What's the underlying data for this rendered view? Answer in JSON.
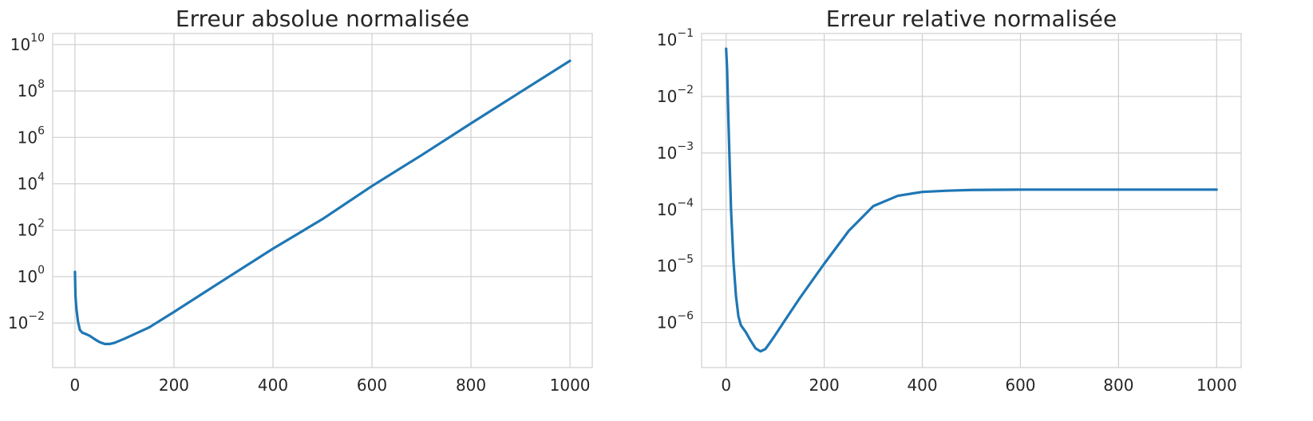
{
  "chart_data": [
    {
      "type": "line",
      "title": "Erreur absolue normalisée",
      "xlabel": "",
      "ylabel": "",
      "yscale": "log",
      "grid": true,
      "xlim": [
        -45,
        1045
      ],
      "ylim": [
        0.00012,
        30000000000
      ],
      "xticks": [
        0,
        200,
        400,
        600,
        800,
        1000
      ],
      "xtick_labels": [
        "0",
        "200",
        "400",
        "600",
        "800",
        "1000"
      ],
      "yticks": [
        0.01,
        1,
        100,
        10000,
        1000000,
        100000000,
        10000000000
      ],
      "ytick_labels": [
        {
          "base": "10",
          "exp": "−2"
        },
        {
          "base": "10",
          "exp": "0"
        },
        {
          "base": "10",
          "exp": "2"
        },
        {
          "base": "10",
          "exp": "4"
        },
        {
          "base": "10",
          "exp": "6"
        },
        {
          "base": "10",
          "exp": "8"
        },
        {
          "base": "10",
          "exp": "10"
        }
      ],
      "color": "#1f77b4",
      "series": [
        {
          "x": [
            0,
            1,
            3,
            6,
            10,
            15,
            20,
            30,
            40,
            50,
            60,
            70,
            80,
            100,
            150,
            200,
            300,
            400,
            500,
            600,
            700,
            800,
            900,
            1000
          ],
          "y": [
            1.6,
            0.15,
            0.04,
            0.012,
            0.005,
            0.0038,
            0.0035,
            0.0028,
            0.002,
            0.0015,
            0.00125,
            0.00125,
            0.0014,
            0.0021,
            0.0065,
            0.03,
            0.7,
            16,
            300,
            8000,
            170000,
            4000000,
            90000000,
            2000000000
          ]
        }
      ]
    },
    {
      "type": "line",
      "title": "Erreur relative normalisée",
      "xlabel": "",
      "ylabel": "",
      "yscale": "log",
      "grid": true,
      "xlim": [
        -50,
        1050
      ],
      "ylim": [
        1.6e-07,
        0.13
      ],
      "xticks": [
        0,
        200,
        400,
        600,
        800,
        1000
      ],
      "xtick_labels": [
        "0",
        "200",
        "400",
        "600",
        "800",
        "1000"
      ],
      "yticks": [
        1e-06,
        1e-05,
        0.0001,
        0.001,
        0.01,
        0.1
      ],
      "ytick_labels": [
        {
          "base": "10",
          "exp": "−6"
        },
        {
          "base": "10",
          "exp": "−5"
        },
        {
          "base": "10",
          "exp": "−4"
        },
        {
          "base": "10",
          "exp": "−3"
        },
        {
          "base": "10",
          "exp": "−2"
        },
        {
          "base": "10",
          "exp": "−1"
        }
      ],
      "color": "#1f77b4",
      "series": [
        {
          "x": [
            0,
            2,
            5,
            10,
            15,
            20,
            25,
            30,
            40,
            50,
            60,
            70,
            80,
            90,
            100,
            120,
            150,
            200,
            250,
            300,
            350,
            400,
            450,
            500,
            600,
            700,
            800,
            1000
          ],
          "y": [
            0.07,
            0.03,
            0.003,
            0.0001,
            1.2e-05,
            3e-06,
            1.3e-06,
            9e-07,
            6.8e-07,
            4.8e-07,
            3.5e-07,
            3.1e-07,
            3.4e-07,
            4.5e-07,
            6e-07,
            1.1e-06,
            2.7e-06,
            1.1e-05,
            4.2e-05,
            0.000115,
            0.000175,
            0.000205,
            0.000215,
            0.000222,
            0.000225,
            0.000225,
            0.000225,
            0.000225
          ]
        }
      ]
    }
  ]
}
